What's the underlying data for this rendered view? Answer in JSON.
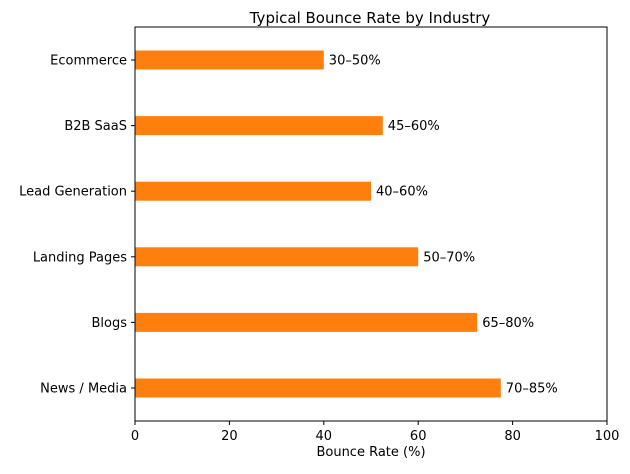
{
  "chart_data": {
    "type": "bar",
    "orientation": "horizontal",
    "title": "Typical Bounce Rate by Industry",
    "xlabel": "Bounce Rate (%)",
    "ylabel": "",
    "xlim": [
      0,
      100
    ],
    "xticks": [
      0,
      20,
      40,
      60,
      80,
      100
    ],
    "xtick_labels": [
      "0",
      "20",
      "40",
      "60",
      "80",
      "100"
    ],
    "grid": false,
    "legend": "none",
    "bar_color": "#ff7f0e",
    "categories": [
      "Ecommerce",
      "B2B SaaS",
      "Lead Generation",
      "Landing Pages",
      "Blogs",
      "News / Media"
    ],
    "ranges": [
      [
        30,
        50
      ],
      [
        45,
        60
      ],
      [
        40,
        60
      ],
      [
        50,
        70
      ],
      [
        65,
        80
      ],
      [
        70,
        85
      ]
    ],
    "values": [
      40,
      52.5,
      50,
      60,
      72.5,
      77.5
    ],
    "data_labels": [
      "30–50%",
      "45–60%",
      "40–60%",
      "50–70%",
      "65–80%",
      "70–85%"
    ]
  }
}
